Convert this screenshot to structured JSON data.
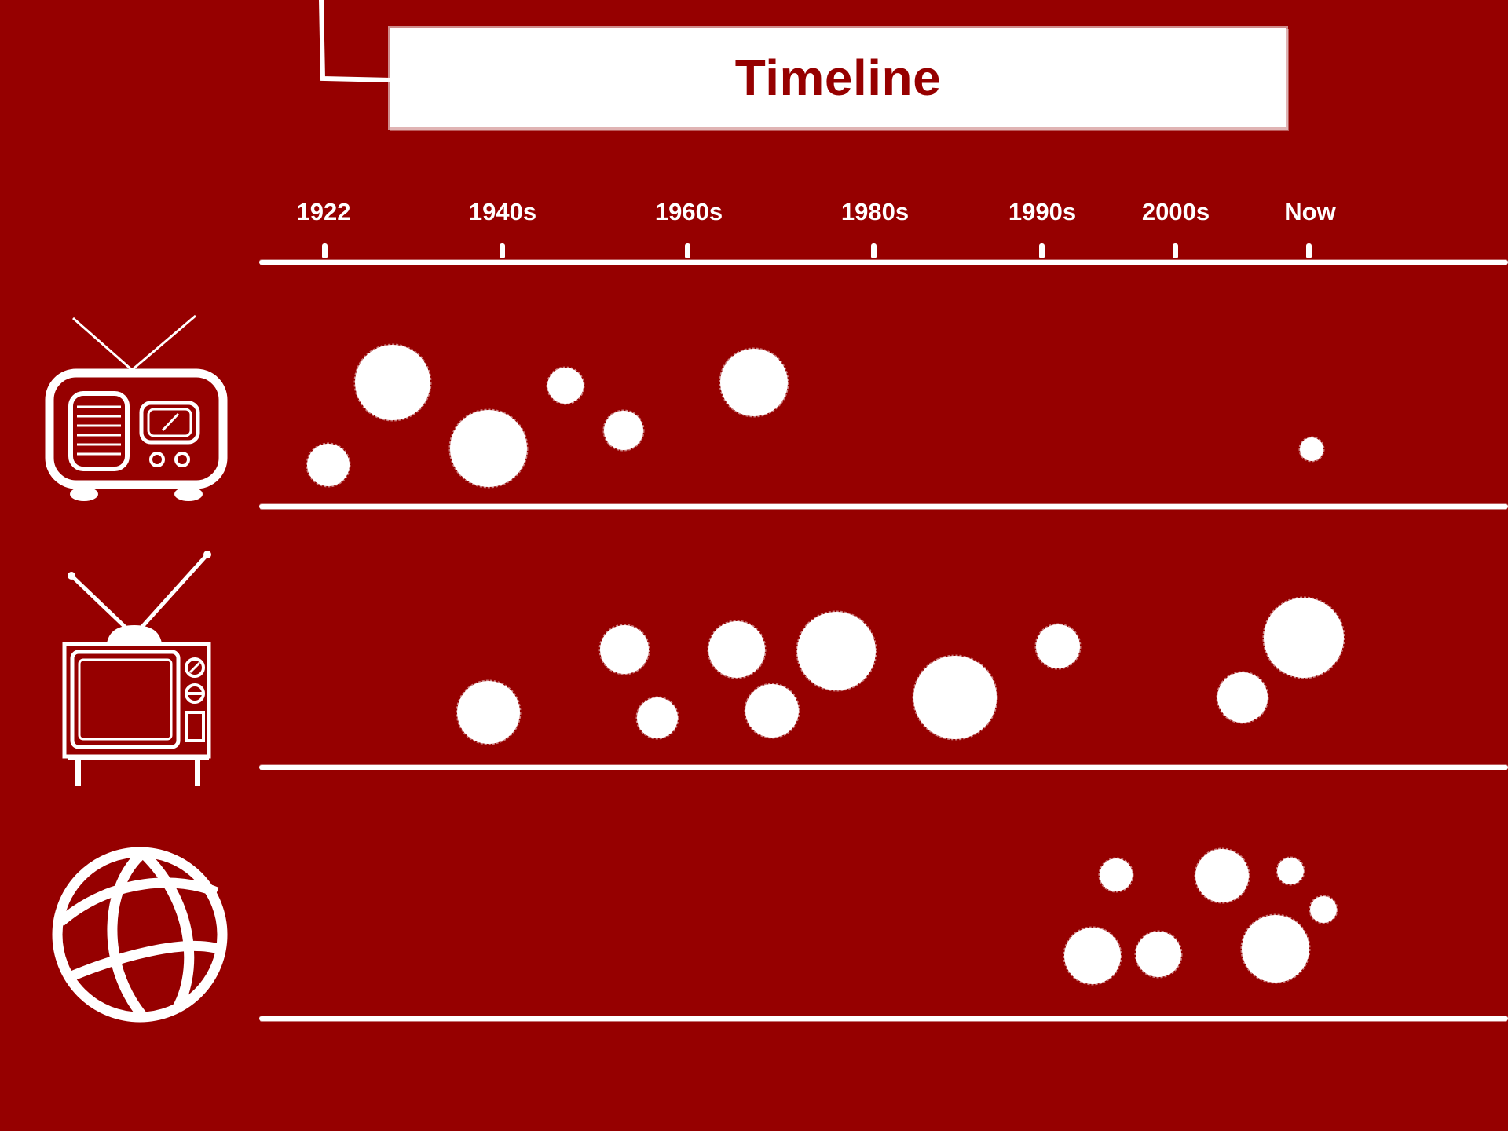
{
  "title": "Timeline",
  "eras": [
    {
      "label": "1922",
      "year": 1922
    },
    {
      "label": "1940s",
      "year": 1940
    },
    {
      "label": "1960s",
      "year": 1960
    },
    {
      "label": "1980s",
      "year": 1980
    },
    {
      "label": "1990s",
      "year": 1990
    },
    {
      "label": "2000s",
      "year": 2000
    },
    {
      "label": "Now",
      "year": 2010
    }
  ],
  "rows": [
    {
      "icon": "radio-icon"
    },
    {
      "icon": "television-icon"
    },
    {
      "icon": "globe-icon"
    }
  ],
  "colors": {
    "background": "#960000",
    "foreground": "#ffffff"
  }
}
